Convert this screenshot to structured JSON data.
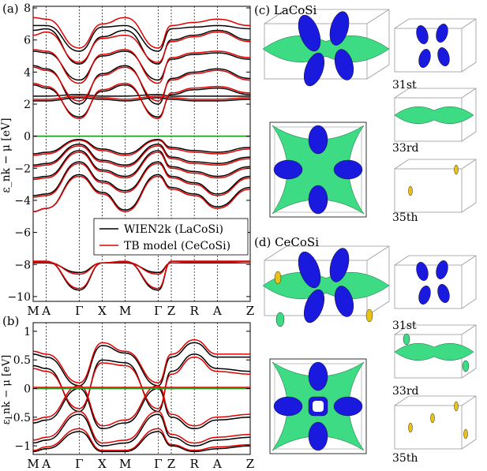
{
  "panels": {
    "a": {
      "label": "(a)"
    },
    "b": {
      "label": "(b)"
    },
    "c": {
      "label": "(c) LaCoSi"
    },
    "d": {
      "label": "(d) CeCoSi"
    }
  },
  "fermi_surface_bands": [
    "31st",
    "33rd",
    "35th"
  ],
  "legend": {
    "items": [
      {
        "label": "WIEN2k (LaCoSi)",
        "color": "#000000"
      },
      {
        "label": "TB model (CeCoSi)",
        "color": "#e00000"
      }
    ]
  },
  "colors": {
    "fermi_line": "#22a022",
    "band_tb": "#e00000",
    "band_wien": "#000000",
    "fs_blue": "#1a1adf",
    "fs_green": "#3ddc84",
    "fs_yellow": "#e8c21a"
  },
  "chart_data": [
    {
      "type": "line",
      "panel": "a",
      "xlabel": "",
      "ylabel": "ε_nk − μ [eV]",
      "ylim": [
        -10.3,
        8.1
      ],
      "yticks": [
        -10,
        -8,
        -6,
        -4,
        -2,
        0,
        2,
        4,
        6,
        8
      ],
      "ytick_labels": [
        "−10",
        "−8",
        "−6",
        "−4",
        "−2",
        "0",
        "2",
        "4",
        "6",
        "8"
      ],
      "kpoints": [
        "M",
        "A",
        "Γ",
        "X",
        "M",
        "Γ",
        "Z",
        "R",
        "A",
        "Z"
      ],
      "kpath_positions": [
        0,
        0.4,
        1.4,
        2.1,
        2.8,
        3.8,
        4.2,
        4.9,
        5.6,
        6.6
      ],
      "series": [
        {
          "name": "WIEN2k (LaCoSi)",
          "color": "#000000",
          "bands": [
            [
              -7.9,
              -7.9,
              -8.5,
              -7.9,
              -7.9,
              -8.5,
              -7.9,
              -7.9,
              -7.9,
              -7.9
            ],
            [
              -7.8,
              -7.8,
              -9.6,
              -7.9,
              -7.8,
              -9.6,
              -7.8,
              -7.8,
              -7.8,
              -7.8
            ],
            [
              -4.7,
              -4.5,
              -2.4,
              -3.5,
              -4.6,
              -2.4,
              -3.2,
              -3.6,
              -4.4,
              -3.2
            ],
            [
              -3.7,
              -3.6,
              -1.6,
              -2.8,
              -3.4,
              -1.6,
              -2.5,
              -2.9,
              -3.6,
              -2.5
            ],
            [
              -2.6,
              -2.5,
              -0.9,
              -2.1,
              -2.5,
              -0.9,
              -1.9,
              -2.2,
              -2.5,
              -1.9
            ],
            [
              -1.8,
              -1.7,
              -0.5,
              -1.5,
              -1.8,
              -0.5,
              -1.3,
              -1.6,
              -1.7,
              -1.3
            ],
            [
              -1.1,
              -1.0,
              -0.2,
              -0.8,
              -1.1,
              -0.2,
              -0.7,
              -0.9,
              -1.0,
              -0.7
            ],
            [
              2.2,
              2.2,
              2.4,
              2.3,
              2.2,
              2.4,
              2.3,
              2.2,
              2.2,
              2.3
            ],
            [
              2.5,
              2.5,
              2.6,
              2.5,
              2.5,
              2.6,
              2.5,
              2.5,
              2.5,
              2.5
            ],
            [
              3.2,
              3.0,
              1.2,
              2.8,
              3.2,
              1.2,
              2.6,
              2.9,
              3.0,
              2.6
            ],
            [
              4.4,
              4.2,
              2.0,
              3.9,
              4.4,
              2.0,
              3.6,
              4.0,
              4.2,
              3.6
            ],
            [
              5.3,
              5.2,
              3.5,
              5.0,
              5.3,
              3.5,
              4.8,
              5.1,
              5.2,
              4.8
            ],
            [
              6.6,
              6.7,
              4.5,
              6.2,
              6.6,
              4.5,
              6.0,
              6.3,
              6.6,
              6.0
            ],
            [
              6.9,
              6.9,
              5.3,
              6.8,
              6.9,
              5.3,
              6.7,
              6.8,
              6.9,
              6.7
            ]
          ]
        },
        {
          "name": "TB model (CeCoSi)",
          "color": "#e00000",
          "bands": [
            [
              -7.85,
              -7.85,
              -8.6,
              -7.9,
              -7.85,
              -8.6,
              -7.9,
              -7.85,
              -7.85,
              -7.9
            ],
            [
              -7.8,
              -7.8,
              -9.5,
              -7.9,
              -7.8,
              -9.5,
              -7.8,
              -7.8,
              -7.8,
              -7.8
            ],
            [
              -4.7,
              -4.5,
              -2.5,
              -3.6,
              -4.7,
              -2.5,
              -3.3,
              -3.7,
              -4.5,
              -3.3
            ],
            [
              -3.8,
              -3.7,
              -1.7,
              -2.9,
              -3.5,
              -1.7,
              -2.6,
              -3.0,
              -3.7,
              -2.6
            ],
            [
              -2.7,
              -2.6,
              -1.0,
              -2.2,
              -2.6,
              -1.0,
              -2.0,
              -2.3,
              -2.6,
              -2.0
            ],
            [
              -1.9,
              -1.8,
              -0.6,
              -1.6,
              -1.9,
              -0.6,
              -1.4,
              -1.7,
              -1.8,
              -1.4
            ],
            [
              -1.2,
              -1.1,
              -0.25,
              -0.9,
              -1.2,
              -0.25,
              -0.8,
              -1.0,
              -1.1,
              -0.8
            ],
            [
              2.3,
              2.3,
              2.5,
              2.4,
              2.3,
              2.5,
              2.4,
              2.3,
              2.3,
              2.4
            ],
            [
              3.3,
              3.1,
              1.1,
              2.9,
              3.3,
              1.1,
              2.7,
              3.0,
              3.1,
              2.7
            ],
            [
              4.3,
              4.1,
              2.2,
              3.8,
              4.3,
              2.2,
              3.5,
              3.9,
              4.1,
              3.5
            ],
            [
              5.4,
              5.3,
              3.3,
              5.1,
              5.4,
              3.3,
              4.9,
              5.2,
              5.3,
              4.9
            ],
            [
              6.3,
              6.5,
              4.6,
              6.1,
              6.3,
              4.6,
              5.9,
              6.2,
              6.5,
              5.9
            ],
            [
              7.4,
              7.3,
              5.5,
              7.0,
              7.4,
              5.5,
              6.9,
              7.1,
              7.3,
              6.9
            ]
          ]
        }
      ],
      "fermi_level": 0
    },
    {
      "type": "line",
      "panel": "b",
      "xlabel": "",
      "ylabel": "ε_nk − μ [eV]",
      "ylim": [
        -1.15,
        1.15
      ],
      "yticks": [
        -1,
        -0.5,
        0,
        0.5,
        1
      ],
      "ytick_labels": [
        "−1",
        "−0.5",
        "0",
        "0.5",
        "1"
      ],
      "kpoints": [
        "M",
        "A",
        "Γ",
        "X",
        "M",
        "Γ",
        "Z",
        "R",
        "A",
        "Z"
      ],
      "kpath_positions": [
        0,
        0.4,
        1.4,
        2.1,
        2.8,
        3.8,
        4.2,
        4.9,
        5.6,
        6.6
      ],
      "series": [
        {
          "name": "WIEN2k (LaCoSi)",
          "color": "#000000",
          "bands": [
            [
              0.6,
              0.55,
              0.05,
              0.75,
              0.62,
              0.05,
              0.55,
              0.8,
              0.55,
              0.55
            ],
            [
              0.4,
              0.35,
              -0.4,
              0.5,
              0.45,
              -0.4,
              0.3,
              0.6,
              0.35,
              0.3
            ],
            [
              -0.6,
              -0.55,
              0.0,
              -0.7,
              -0.6,
              0.0,
              -0.5,
              -0.7,
              -0.55,
              -0.5
            ],
            [
              -0.95,
              -0.9,
              -0.45,
              -1.0,
              -0.95,
              -0.45,
              -0.85,
              -1.0,
              -0.9,
              -0.85
            ],
            [
              -1.1,
              -1.05,
              -0.75,
              -1.1,
              -1.1,
              -0.75,
              -1.0,
              -1.1,
              -1.05,
              -1.0
            ]
          ]
        },
        {
          "name": "TB model (CeCoSi)",
          "color": "#e00000",
          "bands": [
            [
              0.65,
              0.6,
              0.1,
              0.8,
              0.65,
              0.1,
              0.6,
              0.85,
              0.6,
              0.6
            ],
            [
              0.35,
              0.3,
              -0.35,
              0.45,
              0.4,
              -0.35,
              0.25,
              0.55,
              0.3,
              0.25
            ],
            [
              0.02,
              0.02,
              0.02,
              0.02,
              0.02,
              0.02,
              0.02,
              0.02,
              0.02,
              0.02
            ],
            [
              -0.55,
              -0.5,
              0.05,
              -0.65,
              -0.55,
              0.05,
              -0.45,
              -0.65,
              -0.5,
              -0.45
            ],
            [
              -0.9,
              -0.85,
              -0.4,
              -0.95,
              -0.9,
              -0.4,
              -0.8,
              -0.95,
              -0.85,
              -0.8
            ],
            [
              -1.08,
              -1.02,
              -0.7,
              -1.08,
              -1.08,
              -0.7,
              -0.98,
              -1.08,
              -1.02,
              -0.98
            ]
          ]
        }
      ],
      "fermi_level": 0
    }
  ]
}
